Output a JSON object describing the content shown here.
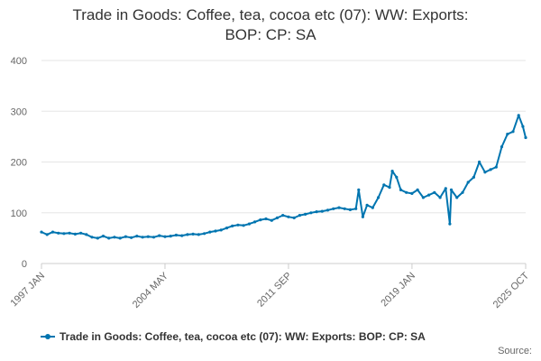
{
  "title_line1": "Trade in Goods: Coffee, tea, cocoa etc (07): WW: Exports:",
  "title_line2": "BOP: CP: SA",
  "source_label": "Source:",
  "colors": {
    "series": "#0075b0",
    "grid": "#e6e6e6",
    "axis_text": "#666666",
    "title": "#333333"
  },
  "chart_data": {
    "type": "line",
    "title": "Trade in Goods: Coffee, tea, cocoa etc (07): WW: Exports: BOP: CP: SA",
    "xlabel": "",
    "ylabel": "",
    "ylim": [
      0,
      400
    ],
    "yticks": [
      0,
      100,
      200,
      300,
      400
    ],
    "xticks": [
      "1997 JAN",
      "2004 MAY",
      "2011 SEP",
      "2019 JAN",
      "2025 OCT"
    ],
    "xrange": [
      "1997 JAN",
      "2025 OCT"
    ],
    "grid": true,
    "legend_position": "bottom",
    "marker": "dot",
    "series": [
      {
        "name": "Trade in Goods: Coffee, tea, cocoa etc (07): WW: Exports: BOP: CP: SA",
        "points": [
          [
            "1997 JAN",
            62
          ],
          [
            "1997 MAY",
            57
          ],
          [
            "1997 SEP",
            62
          ],
          [
            "1998 JAN",
            60
          ],
          [
            "1998 MAY",
            59
          ],
          [
            "1998 SEP",
            60
          ],
          [
            "1999 JAN",
            58
          ],
          [
            "1999 MAY",
            60
          ],
          [
            "1999 SEP",
            57
          ],
          [
            "2000 JAN",
            52
          ],
          [
            "2000 MAY",
            50
          ],
          [
            "2000 SEP",
            54
          ],
          [
            "2001 JAN",
            50
          ],
          [
            "2001 MAY",
            52
          ],
          [
            "2001 SEP",
            50
          ],
          [
            "2002 JAN",
            53
          ],
          [
            "2002 MAY",
            51
          ],
          [
            "2002 SEP",
            54
          ],
          [
            "2003 JAN",
            52
          ],
          [
            "2003 MAY",
            53
          ],
          [
            "2003 SEP",
            52
          ],
          [
            "2004 JAN",
            55
          ],
          [
            "2004 MAY",
            53
          ],
          [
            "2004 SEP",
            54
          ],
          [
            "2005 JAN",
            56
          ],
          [
            "2005 MAY",
            55
          ],
          [
            "2005 SEP",
            57
          ],
          [
            "2006 JAN",
            58
          ],
          [
            "2006 MAY",
            57
          ],
          [
            "2006 SEP",
            59
          ],
          [
            "2007 JAN",
            62
          ],
          [
            "2007 MAY",
            64
          ],
          [
            "2007 SEP",
            66
          ],
          [
            "2008 JAN",
            70
          ],
          [
            "2008 MAY",
            74
          ],
          [
            "2008 SEP",
            76
          ],
          [
            "2009 JAN",
            75
          ],
          [
            "2009 MAY",
            78
          ],
          [
            "2009 SEP",
            82
          ],
          [
            "2010 JAN",
            86
          ],
          [
            "2010 MAY",
            88
          ],
          [
            "2010 SEP",
            85
          ],
          [
            "2011 JAN",
            90
          ],
          [
            "2011 MAY",
            95
          ],
          [
            "2011 SEP",
            92
          ],
          [
            "2012 JAN",
            90
          ],
          [
            "2012 MAY",
            95
          ],
          [
            "2012 SEP",
            97
          ],
          [
            "2013 JAN",
            100
          ],
          [
            "2013 MAY",
            102
          ],
          [
            "2013 SEP",
            103
          ],
          [
            "2014 JAN",
            105
          ],
          [
            "2014 MAY",
            108
          ],
          [
            "2014 SEP",
            110
          ],
          [
            "2015 JAN",
            108
          ],
          [
            "2015 MAY",
            106
          ],
          [
            "2015 SEP",
            108
          ],
          [
            "2015 NOV",
            145
          ],
          [
            "2016 FEB",
            92
          ],
          [
            "2016 MAY",
            115
          ],
          [
            "2016 SEP",
            110
          ],
          [
            "2017 JAN",
            130
          ],
          [
            "2017 MAY",
            155
          ],
          [
            "2017 SEP",
            150
          ],
          [
            "2017 NOV",
            182
          ],
          [
            "2018 FEB",
            170
          ],
          [
            "2018 MAY",
            145
          ],
          [
            "2018 SEP",
            140
          ],
          [
            "2019 JAN",
            138
          ],
          [
            "2019 MAY",
            145
          ],
          [
            "2019 SEP",
            130
          ],
          [
            "2020 JAN",
            135
          ],
          [
            "2020 MAY",
            140
          ],
          [
            "2020 SEP",
            130
          ],
          [
            "2021 JAN",
            148
          ],
          [
            "2021 APR",
            78
          ],
          [
            "2021 MAY",
            145
          ],
          [
            "2021 SEP",
            130
          ],
          [
            "2022 JAN",
            140
          ],
          [
            "2022 MAY",
            160
          ],
          [
            "2022 SEP",
            170
          ],
          [
            "2023 JAN",
            200
          ],
          [
            "2023 MAY",
            180
          ],
          [
            "2023 SEP",
            185
          ],
          [
            "2024 JAN",
            190
          ],
          [
            "2024 MAY",
            230
          ],
          [
            "2024 SEP",
            255
          ],
          [
            "2025 JAN",
            260
          ],
          [
            "2025 MAY",
            292
          ],
          [
            "2025 AUG",
            270
          ],
          [
            "2025 OCT",
            248
          ]
        ]
      }
    ]
  }
}
